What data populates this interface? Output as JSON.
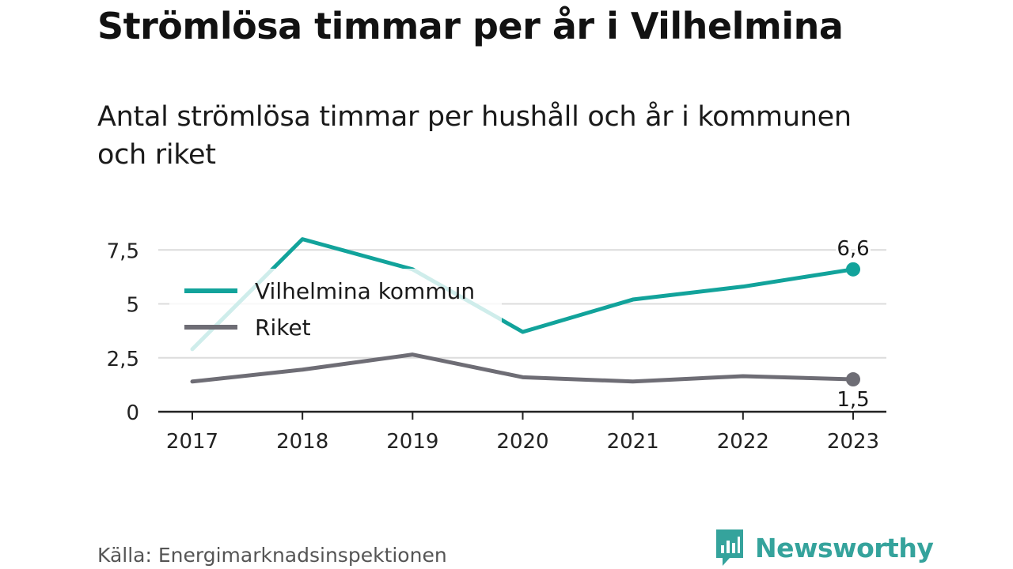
{
  "header": {
    "title": "Strömlösa timmar per år i Vilhelmina",
    "subtitle": "Antal strömlösa timmar per hushåll och år i kommunen och riket"
  },
  "footer": {
    "source": "Källa: Energimarknadsinspektionen",
    "brand": "Newsworthy"
  },
  "colors": {
    "kommun": "#12a39b",
    "riket": "#6e6d75",
    "grid": "#dcdcdc",
    "axis": "#222222",
    "brand": "#35a39c"
  },
  "chart_data": {
    "type": "line",
    "x": [
      "2017",
      "2018",
      "2019",
      "2020",
      "2021",
      "2022",
      "2023"
    ],
    "ylim": [
      0,
      8.5
    ],
    "yticks": [
      0,
      2.5,
      5,
      7.5
    ],
    "ytick_labels": [
      "0",
      "2,5",
      "5",
      "7,5"
    ],
    "grid": true,
    "legend_position": "top-left",
    "series": [
      {
        "name": "Vilhelmina kommun",
        "values": [
          2.9,
          8.0,
          6.6,
          3.7,
          5.2,
          5.8,
          6.6
        ],
        "end_label": "6,6",
        "color_key": "kommun"
      },
      {
        "name": "Riket",
        "values": [
          1.4,
          1.95,
          2.65,
          1.6,
          1.4,
          1.65,
          1.5
        ],
        "end_label": "1,5",
        "color_key": "riket"
      }
    ]
  }
}
